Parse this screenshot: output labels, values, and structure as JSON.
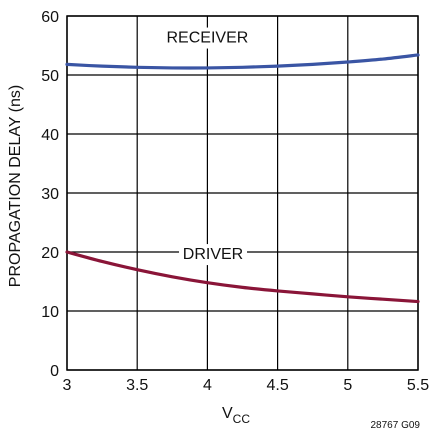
{
  "chart_data": {
    "type": "line",
    "xlabel_main": "V",
    "xlabel_sub": "CC",
    "ylabel": "PROPAGATION DELAY (ns)",
    "xlim": [
      3,
      5.5
    ],
    "ylim": [
      0,
      60
    ],
    "x_ticks": [
      3,
      3.5,
      4,
      4.5,
      5,
      5.5
    ],
    "x_tick_labels": [
      "3",
      "3.5",
      "4",
      "4.5",
      "5",
      "5.5"
    ],
    "y_ticks": [
      0,
      10,
      20,
      30,
      40,
      50,
      60
    ],
    "y_tick_labels": [
      "0",
      "10",
      "20",
      "30",
      "40",
      "50",
      "60"
    ],
    "grid": true,
    "series": [
      {
        "name": "RECEIVER",
        "color": "#3a55a4",
        "x": [
          3.0,
          3.25,
          3.5,
          3.75,
          4.0,
          4.25,
          4.5,
          4.75,
          5.0,
          5.25,
          5.5
        ],
        "y": [
          51.8,
          51.5,
          51.3,
          51.2,
          51.2,
          51.3,
          51.5,
          51.8,
          52.2,
          52.7,
          53.4
        ]
      },
      {
        "name": "DRIVER",
        "color": "#8a1538",
        "x": [
          3.0,
          3.25,
          3.5,
          3.75,
          4.0,
          4.25,
          4.5,
          4.75,
          5.0,
          5.25,
          5.5
        ],
        "y": [
          20.0,
          18.4,
          17.0,
          15.8,
          14.8,
          14.0,
          13.4,
          12.9,
          12.4,
          12.0,
          11.6
        ]
      }
    ],
    "note": "28767 G09"
  }
}
